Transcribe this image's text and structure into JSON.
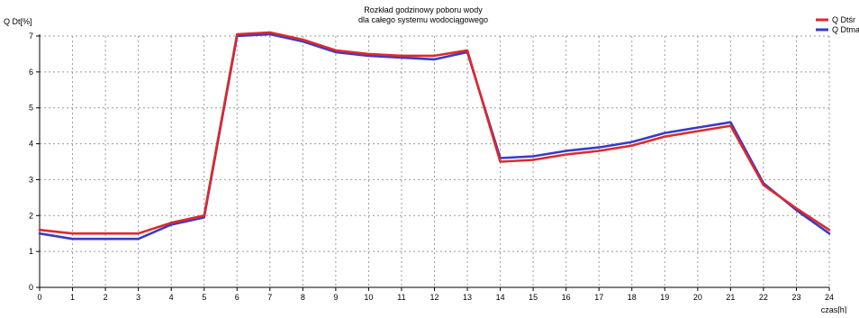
{
  "chart_data": {
    "type": "line",
    "title": [
      "Rozkład godzinowy poboru wody",
      "dla całego systemu wodociągowego"
    ],
    "ylabel": "Q Dt[%]",
    "xlabel": "czas[h]",
    "xlim": [
      0,
      24
    ],
    "ylim": [
      0,
      7
    ],
    "x_ticks": [
      0,
      1,
      2,
      3,
      4,
      5,
      6,
      7,
      8,
      9,
      10,
      11,
      12,
      13,
      14,
      15,
      16,
      17,
      18,
      19,
      20,
      21,
      22,
      23,
      24
    ],
    "y_ticks": [
      0,
      1,
      2,
      3,
      4,
      5,
      6,
      7
    ],
    "grid": true,
    "legend_position": "top-right",
    "x": [
      0,
      1,
      2,
      3,
      4,
      5,
      6,
      7,
      8,
      9,
      10,
      11,
      12,
      13,
      14,
      15,
      16,
      17,
      18,
      19,
      20,
      21,
      22,
      23,
      24
    ],
    "series": [
      {
        "name": "Q Dtśr",
        "color": "#dd2a2a",
        "values": [
          1.6,
          1.5,
          1.5,
          1.5,
          1.8,
          2.0,
          7.05,
          7.1,
          6.9,
          6.6,
          6.5,
          6.45,
          6.45,
          6.6,
          3.5,
          3.55,
          3.7,
          3.8,
          3.95,
          4.2,
          4.35,
          4.5,
          2.85,
          2.2,
          1.6
        ]
      },
      {
        "name": "Q Dtma",
        "color": "#3a3ac8",
        "values": [
          1.5,
          1.35,
          1.35,
          1.35,
          1.75,
          1.95,
          7.0,
          7.05,
          6.85,
          6.55,
          6.45,
          6.4,
          6.35,
          6.55,
          3.6,
          3.65,
          3.8,
          3.9,
          4.05,
          4.3,
          4.45,
          4.6,
          2.9,
          2.15,
          1.5
        ]
      }
    ]
  }
}
